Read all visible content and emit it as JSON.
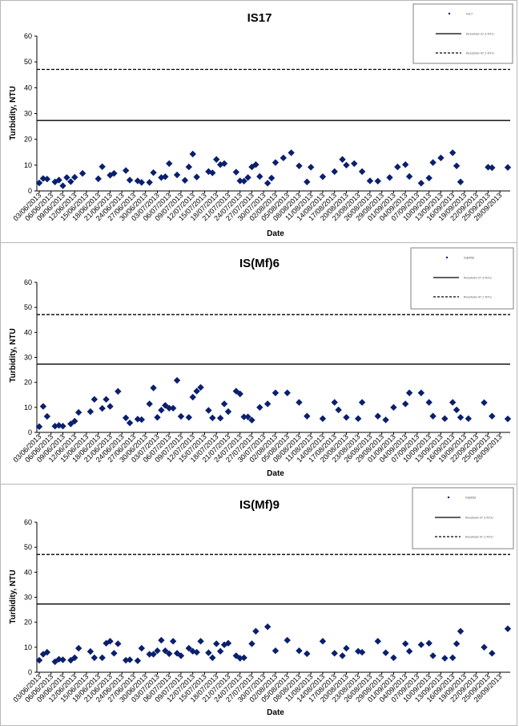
{
  "chart_data": [
    {
      "type": "scatter",
      "title": "IS17",
      "xlabel": "Date",
      "ylabel": "Turbidity, NTU",
      "ylim": [
        0,
        60
      ],
      "yticks": [
        "0",
        "10",
        "20",
        "30",
        "40",
        "50",
        "60"
      ],
      "xticks": [
        "03/06/2013",
        "06/06/2013",
        "09/06/2013",
        "12/06/2013",
        "15/06/2013",
        "18/06/2013",
        "21/06/2013",
        "24/06/2013",
        "27/06/2013",
        "30/06/2013",
        "03/07/2013",
        "06/07/2013",
        "09/07/2013",
        "12/07/2013",
        "15/07/2013",
        "18/07/2013",
        "21/07/2013",
        "24/07/2013",
        "27/07/2013",
        "30/07/2013",
        "02/08/2013",
        "05/08/2013",
        "08/08/2013",
        "11/08/2013",
        "14/08/2013",
        "17/08/2013",
        "20/08/2013",
        "23/08/2013",
        "26/08/2013",
        "29/08/2013",
        "01/09/2013",
        "04/09/2013",
        "07/09/2013",
        "10/09/2013",
        "13/09/2013",
        "16/09/2013",
        "19/09/2013",
        "22/09/2013",
        "25/09/2013",
        "28/09/2013"
      ],
      "series": [
        {
          "x": [
            "03/06/2013",
            "04/06/2013",
            "05/06/2013",
            "07/06/2013",
            "08/06/2013",
            "09/06/2013",
            "10/06/2013",
            "11/06/2013",
            "12/06/2013",
            "14/06/2013",
            "18/06/2013",
            "19/06/2013",
            "21/06/2013",
            "22/06/2013",
            "25/06/2013",
            "26/06/2013",
            "28/06/2013",
            "29/06/2013",
            "01/07/2013",
            "02/07/2013",
            "04/07/2013",
            "05/07/2013",
            "06/07/2013",
            "08/07/2013",
            "10/07/2013",
            "11/07/2013",
            "12/07/2013",
            "13/07/2013",
            "16/07/2013",
            "17/07/2013",
            "18/07/2013",
            "19/07/2013",
            "20/07/2013",
            "23/07/2013",
            "24/07/2013",
            "25/07/2013",
            "26/07/2013",
            "27/07/2013",
            "28/07/2013",
            "29/07/2013"
          ],
          "values": [
            3.1,
            4.8,
            4.6,
            3.5,
            4.2,
            2.0,
            5.2,
            3.6,
            5.3,
            6.8,
            4.7,
            9.4,
            6.1,
            6.8,
            7.9,
            4.2,
            3.9,
            3.3,
            3.3,
            7.1,
            5.2,
            5.5,
            10.6,
            6.2,
            4.1,
            9.3,
            14.3,
            5.4,
            7.5,
            7.0,
            12.2,
            10.2,
            10.6,
            7.3,
            3.9,
            3.8,
            5.2,
            9.3,
            10.2,
            5.6
          ]
        },
        {
          "x": [
            "31/07/2013",
            "01/08/2013",
            "02/08/2013",
            "04/08/2013",
            "06/08/2013",
            "08/08/2013",
            "10/08/2013",
            "11/08/2013",
            "14/08/2013",
            "17/08/2013",
            "19/08/2013",
            "20/08/2013",
            "22/08/2013",
            "24/08/2013",
            "26/08/2013",
            "28/08/2013",
            "31/08/2013",
            "02/09/2013",
            "04/09/2013",
            "05/09/2013",
            "08/09/2013",
            "10/09/2013",
            "11/09/2013",
            "13/09/2013",
            "16/09/2013",
            "17/09/2013",
            "18/09/2013",
            "25/09/2013",
            "26/09/2013",
            "30/09/2013"
          ],
          "values": [
            3.0,
            5.0,
            11.0,
            12.8,
            14.8,
            9.7,
            3.5,
            9.2,
            5.5,
            7.5,
            12.2,
            10.0,
            10.6,
            7.5,
            3.9,
            3.8,
            5.2,
            9.3,
            10.2,
            5.6,
            3.0,
            5.0,
            11.0,
            12.8,
            14.8,
            9.7,
            3.5,
            9.2,
            9.0,
            9.1
          ]
        }
      ],
      "hlines": [
        27.3,
        47.1
      ],
      "hline_styles": [
        "solid",
        "dashed"
      ],
      "legend": "top-right",
      "legend_entries": [
        "IS17",
        "threshold 27.3 NTU",
        "threshold 47.1 NTU"
      ]
    },
    {
      "type": "scatter",
      "title": "IS(Mf)6",
      "xlabel": "Date",
      "ylabel": "Turbidity, NTU",
      "ylim": [
        0,
        60
      ],
      "yticks": [
        "0",
        "10",
        "20",
        "30",
        "40",
        "50",
        "60"
      ],
      "xticks": [
        "03/06/2013",
        "06/06/2013",
        "09/06/2013",
        "12/06/2013",
        "15/06/2013",
        "18/06/2013",
        "21/06/2013",
        "24/06/2013",
        "27/06/2013",
        "30/06/2013",
        "03/07/2013",
        "06/07/2013",
        "09/07/2013",
        "12/07/2013",
        "15/07/2013",
        "18/07/2013",
        "21/07/2013",
        "24/07/2013",
        "27/07/2013",
        "30/07/2013",
        "02/08/2013",
        "05/08/2013",
        "08/08/2013",
        "11/08/2013",
        "14/08/2013",
        "17/08/2013",
        "20/08/2013",
        "23/08/2013",
        "26/08/2013",
        "29/08/2013",
        "01/09/2013",
        "04/09/2013",
        "07/09/2013",
        "10/09/2013",
        "13/09/2013",
        "16/09/2013",
        "19/09/2013",
        "22/09/2013",
        "25/09/2013",
        "28/09/2013"
      ],
      "series": [
        {
          "x": [
            "03/06/2013",
            "04/06/2013",
            "05/06/2013",
            "07/06/2013",
            "08/06/2013",
            "09/06/2013",
            "11/06/2013",
            "12/06/2013",
            "13/06/2013",
            "16/06/2013",
            "17/06/2013",
            "19/06/2013",
            "20/06/2013",
            "21/06/2013",
            "23/06/2013",
            "25/06/2013",
            "26/06/2013",
            "28/06/2013",
            "29/06/2013",
            "01/07/2013",
            "02/07/2013",
            "03/07/2013",
            "04/07/2013",
            "05/07/2013",
            "06/07/2013",
            "07/07/2013",
            "08/07/2013",
            "09/07/2013",
            "11/07/2013",
            "12/07/2013",
            "13/07/2013",
            "14/07/2013",
            "16/07/2013",
            "17/07/2013",
            "19/07/2013",
            "20/07/2013",
            "21/07/2013",
            "23/07/2013",
            "24/07/2013",
            "25/07/2013"
          ],
          "values": [
            2.3,
            10.4,
            6.4,
            2.5,
            2.8,
            2.5,
            3.4,
            4.5,
            8.0,
            8.3,
            13.2,
            9.6,
            13.2,
            10.4,
            16.4,
            5.8,
            3.8,
            5.3,
            5.1,
            11.4,
            17.8,
            6.0,
            8.9,
            10.8,
            9.7,
            9.7,
            20.8,
            6.4,
            6.0,
            14.1,
            16.5,
            18.0,
            8.8,
            5.8,
            5.7,
            11.4,
            8.3,
            16.5,
            15.4,
            6.2
          ]
        },
        {
          "x": [
            "26/07/2013",
            "27/07/2013",
            "29/07/2013",
            "31/07/2013",
            "02/08/2013",
            "05/08/2013",
            "08/08/2013",
            "10/08/2013",
            "14/08/2013",
            "17/08/2013",
            "18/08/2013",
            "20/08/2013",
            "23/08/2013",
            "24/08/2013",
            "28/08/2013",
            "30/08/2013",
            "01/09/2013",
            "04/09/2013",
            "05/09/2013",
            "08/09/2013",
            "10/09/2013",
            "11/09/2013",
            "14/09/2013",
            "16/09/2013",
            "17/09/2013",
            "18/09/2013",
            "20/09/2013",
            "24/09/2013",
            "26/09/2013",
            "30/09/2013"
          ],
          "values": [
            6.2,
            4.9,
            10.0,
            11.4,
            15.8,
            15.8,
            12.0,
            6.5,
            5.5,
            12.0,
            9.0,
            6.0,
            5.5,
            12.0,
            6.5,
            5.0,
            10.0,
            11.4,
            15.8,
            15.8,
            12.0,
            6.5,
            5.5,
            12.0,
            9.0,
            6.0,
            5.5,
            11.9,
            6.5,
            5.4
          ]
        }
      ],
      "hlines": [
        27.3,
        47.1
      ],
      "hline_styles": [
        "solid",
        "dashed"
      ],
      "legend": "top-right",
      "legend_entries": [
        "IS(Mf)6",
        "threshold 27.3 NTU",
        "threshold 47.1 NTU"
      ]
    },
    {
      "type": "scatter",
      "title": "IS(Mf)9",
      "xlabel": "Date",
      "ylabel": "Turbidity, NTU",
      "ylim": [
        0,
        60
      ],
      "yticks": [
        "0",
        "10",
        "20",
        "30",
        "40",
        "50",
        "60"
      ],
      "xticks": [
        "03/06/2013",
        "06/06/2013",
        "09/06/2013",
        "12/06/2013",
        "15/06/2013",
        "18/06/2013",
        "21/06/2013",
        "24/06/2013",
        "27/06/2013",
        "30/06/2013",
        "03/07/2013",
        "06/07/2013",
        "09/07/2013",
        "12/07/2013",
        "15/07/2013",
        "18/07/2013",
        "21/07/2013",
        "24/07/2013",
        "27/07/2013",
        "30/07/2013",
        "02/08/2013",
        "05/08/2013",
        "08/08/2013",
        "11/08/2013",
        "14/08/2013",
        "17/08/2013",
        "20/08/2013",
        "23/08/2013",
        "26/08/2013",
        "29/08/2013",
        "01/09/2013",
        "04/09/2013",
        "07/09/2013",
        "10/09/2013",
        "13/09/2013",
        "16/09/2013",
        "19/09/2013",
        "22/09/2013",
        "25/09/2013",
        "28/09/2013"
      ],
      "series": [
        {
          "x": [
            "03/06/2013",
            "04/06/2013",
            "05/06/2013",
            "07/06/2013",
            "08/06/2013",
            "09/06/2013",
            "11/06/2013",
            "12/06/2013",
            "13/06/2013",
            "16/06/2013",
            "17/06/2013",
            "19/06/2013",
            "20/06/2013",
            "21/06/2013",
            "22/06/2013",
            "23/06/2013",
            "25/06/2013",
            "26/06/2013",
            "28/06/2013",
            "29/06/2013",
            "01/07/2013",
            "02/07/2013",
            "03/07/2013",
            "04/07/2013",
            "05/07/2013",
            "06/07/2013",
            "07/07/2013",
            "08/07/2013",
            "09/07/2013",
            "11/07/2013",
            "12/07/2013",
            "13/07/2013",
            "14/07/2013",
            "16/07/2013",
            "17/07/2013",
            "18/07/2013",
            "19/07/2013",
            "20/07/2013",
            "21/07/2013",
            "23/07/2013"
          ],
          "values": [
            4.8,
            7.2,
            8.0,
            4.2,
            5.2,
            5.0,
            4.8,
            5.8,
            9.6,
            8.3,
            5.8,
            5.8,
            11.6,
            12.4,
            7.6,
            11.4,
            4.8,
            5.0,
            4.6,
            9.6,
            7.2,
            7.2,
            8.6,
            12.8,
            8.6,
            7.4,
            12.4,
            7.6,
            6.6,
            9.6,
            8.4,
            8.0,
            12.4,
            7.8,
            5.8,
            11.4,
            8.4,
            11.0,
            11.6,
            6.6
          ]
        },
        {
          "x": [
            "24/07/2013",
            "25/07/2013",
            "27/07/2013",
            "28/07/2013",
            "31/07/2013",
            "02/08/2013",
            "05/08/2013",
            "08/08/2013",
            "10/08/2013",
            "14/08/2013",
            "17/08/2013",
            "19/08/2013",
            "20/08/2013",
            "23/08/2013",
            "24/08/2013",
            "28/08/2013",
            "30/08/2013",
            "01/09/2013",
            "04/09/2013",
            "05/09/2013",
            "08/09/2013",
            "10/09/2013",
            "11/09/2013",
            "14/09/2013",
            "16/09/2013",
            "17/09/2013",
            "18/09/2013",
            "24/09/2013",
            "26/09/2013",
            "30/09/2013"
          ],
          "values": [
            5.6,
            5.8,
            11.4,
            16.4,
            18.2,
            8.6,
            12.8,
            8.6,
            7.4,
            12.4,
            7.6,
            6.6,
            9.6,
            8.4,
            8.0,
            12.4,
            7.8,
            5.8,
            11.4,
            8.4,
            11.0,
            11.6,
            6.6,
            5.6,
            5.8,
            11.4,
            16.4,
            10.0,
            7.6,
            17.4
          ]
        }
      ],
      "hlines": [
        27.3,
        47.1
      ],
      "hline_styles": [
        "solid",
        "dashed"
      ],
      "legend": "top-right",
      "legend_entries": [
        "IS(Mf)9",
        "threshold 27.3 NTU",
        "threshold 47.1 NTU"
      ]
    }
  ],
  "colors": {
    "marker": "#0a1f6e",
    "line": "#000000",
    "panel_border": "#b8b8b8",
    "legend_border": "#808080"
  }
}
